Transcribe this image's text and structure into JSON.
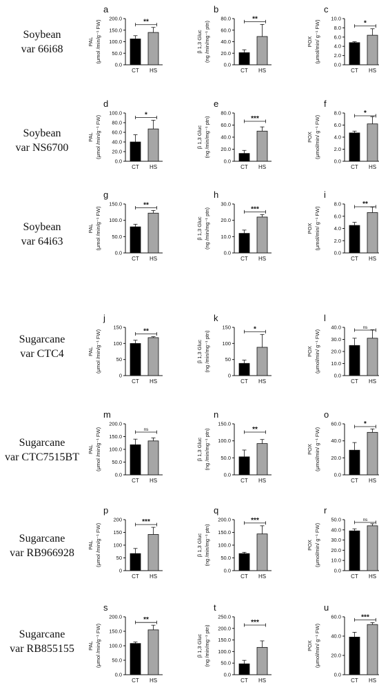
{
  "row_labels": [
    {
      "line1": "Soybean",
      "line2": "var 66i68"
    },
    {
      "line1": "Soybean",
      "line2": "var NS6700"
    },
    {
      "line1": "Soybean",
      "line2": "var 64i63"
    },
    {
      "line1": "Sugarcane",
      "line2": "var CTC4"
    },
    {
      "line1": "Sugarcane",
      "line2": "var CTC7515BT"
    },
    {
      "line1": "Sugarcane",
      "line2": "var RB966928"
    },
    {
      "line1": "Sugarcane",
      "line2": "var RB855155"
    }
  ],
  "colors": {
    "CT": "#000000",
    "HS": "#a6a6a6",
    "axis": "#111111"
  },
  "chart_data": [
    {
      "type": "bar",
      "panel": "a",
      "categories": [
        "CT",
        "HS"
      ],
      "values": [
        112,
        140
      ],
      "errors": [
        14,
        22
      ],
      "ylabel": "PAL",
      "ylabel_unit": "(μmol /min/g⁻¹ FW)",
      "ylim": [
        0,
        200
      ],
      "ticks": [
        "0.0",
        "50.0",
        "100.0",
        "150.0",
        "200.0"
      ],
      "significance": "**"
    },
    {
      "type": "bar",
      "panel": "b",
      "categories": [
        "CT",
        "HS"
      ],
      "values": [
        21,
        49
      ],
      "errors": [
        5,
        21
      ],
      "ylabel": "β 1,3 Gluc",
      "ylabel_unit": "(ng /min/mg⁻¹ ptn)",
      "ylim": [
        0,
        80
      ],
      "ticks": [
        "0.0",
        "20.0",
        "40.0",
        "60.0",
        "80.0"
      ],
      "significance": "**"
    },
    {
      "type": "bar",
      "panel": "c",
      "categories": [
        "CT",
        "HS"
      ],
      "values": [
        4.8,
        6.4
      ],
      "errors": [
        0.2,
        1.4
      ],
      "ylabel": "POX",
      "ylabel_unit": "(μmol/min/ g⁻¹ FW)",
      "ylim": [
        0,
        10
      ],
      "ticks": [
        "0.0",
        "2.0",
        "4.0",
        "6.0",
        "8.0",
        "10.0"
      ],
      "significance": "*"
    },
    {
      "type": "bar",
      "panel": "d",
      "categories": [
        "CT",
        "HS"
      ],
      "values": [
        40,
        67
      ],
      "errors": [
        15,
        18
      ],
      "ylabel": "PAL",
      "ylabel_unit": "(μmol /min/g⁻¹ FW)",
      "ylim": [
        0,
        100
      ],
      "ticks": [
        "0.0",
        "20.0",
        "40.0",
        "60.0",
        "80.0",
        "100.0"
      ],
      "significance": "*"
    },
    {
      "type": "bar",
      "panel": "e",
      "categories": [
        "CT",
        "HS"
      ],
      "values": [
        13,
        50
      ],
      "errors": [
        5,
        7
      ],
      "ylabel": "β 1,3 Gluc",
      "ylabel_unit": "(ng /min/mg⁻¹ ptn)",
      "ylim": [
        0,
        80
      ],
      "ticks": [
        "0.0",
        "20.0",
        "40.0",
        "60.0",
        "80.0"
      ],
      "significance": "***"
    },
    {
      "type": "bar",
      "panel": "f",
      "categories": [
        "CT",
        "HS"
      ],
      "values": [
        4.7,
        6.2
      ],
      "errors": [
        0.3,
        1.2
      ],
      "ylabel": "POX",
      "ylabel_unit": "(μmol/min/ g⁻¹ FW)",
      "ylim": [
        0,
        8
      ],
      "ticks": [
        "0.0",
        "2.0",
        "4.0",
        "6.0",
        "8.0"
      ],
      "significance": "*"
    },
    {
      "type": "bar",
      "panel": "g",
      "categories": [
        "CT",
        "HS"
      ],
      "values": [
        80,
        122
      ],
      "errors": [
        8,
        8
      ],
      "ylabel": "PAL",
      "ylabel_unit": "(μmol /min/g⁻¹ FW)",
      "ylim": [
        0,
        150
      ],
      "ticks": [
        "0.0",
        "50.0",
        "100.0",
        "150.0"
      ],
      "significance": "**"
    },
    {
      "type": "bar",
      "panel": "h",
      "categories": [
        "CT",
        "HS"
      ],
      "values": [
        12,
        22
      ],
      "errors": [
        2,
        1.5
      ],
      "ylabel": "β 1,3 Gluc",
      "ylabel_unit": "(ng /min/mg⁻¹ ptn)",
      "ylim": [
        0,
        30
      ],
      "ticks": [
        "0.0",
        "10.0",
        "20.0",
        "30.0"
      ],
      "significance": "***"
    },
    {
      "type": "bar",
      "panel": "i",
      "categories": [
        "CT",
        "HS"
      ],
      "values": [
        4.5,
        6.6
      ],
      "errors": [
        0.5,
        0.9
      ],
      "ylabel": "POX",
      "ylabel_unit": "(μmol/min/ g⁻¹ FW)",
      "ylim": [
        0,
        8
      ],
      "ticks": [
        "0.0",
        "2.0",
        "4.0",
        "6.0",
        "8.0"
      ],
      "significance": "**"
    },
    {
      "type": "bar",
      "panel": "j",
      "categories": [
        "CT",
        "HS"
      ],
      "values": [
        100,
        118
      ],
      "errors": [
        10,
        3
      ],
      "ylabel": "PAL",
      "ylabel_unit": "(μmol /min/g⁻¹ FW)",
      "ylim": [
        0,
        150
      ],
      "ticks": [
        "0",
        "50",
        "100",
        "150"
      ],
      "significance": "**"
    },
    {
      "type": "bar",
      "panel": "k",
      "categories": [
        "CT",
        "HS"
      ],
      "values": [
        38,
        88
      ],
      "errors": [
        10,
        40
      ],
      "ylabel": "β 1,3 Gluc",
      "ylabel_unit": "(ng /min/mg⁻¹ ptn)",
      "ylim": [
        0,
        150
      ],
      "ticks": [
        "0",
        "50",
        "100",
        "150"
      ],
      "significance": "*"
    },
    {
      "type": "bar",
      "panel": "l",
      "categories": [
        "CT",
        "HS"
      ],
      "values": [
        25,
        31
      ],
      "errors": [
        6,
        7
      ],
      "ylabel": "POX",
      "ylabel_unit": "(μmol/min/ g⁻¹ FW)",
      "ylim": [
        0,
        40
      ],
      "ticks": [
        "0.0",
        "10.0",
        "20.0",
        "30.0",
        "40.0"
      ],
      "significance": "ns"
    },
    {
      "type": "bar",
      "panel": "m",
      "categories": [
        "CT",
        "HS"
      ],
      "values": [
        118,
        133
      ],
      "errors": [
        22,
        12
      ],
      "ylabel": "PAL",
      "ylabel_unit": "(μmol /min/g⁻¹ FW)",
      "ylim": [
        0,
        200
      ],
      "ticks": [
        "0.0",
        "50.0",
        "100.0",
        "150.0",
        "200.0"
      ],
      "significance": "ns"
    },
    {
      "type": "bar",
      "panel": "n",
      "categories": [
        "CT",
        "HS"
      ],
      "values": [
        53,
        92
      ],
      "errors": [
        20,
        12
      ],
      "ylabel": "β 1,3 Gluc",
      "ylabel_unit": "(ng /min/mg⁻¹ ptn)",
      "ylim": [
        0,
        150
      ],
      "ticks": [
        "0.0",
        "50.0",
        "100.0",
        "150.0"
      ],
      "significance": "**"
    },
    {
      "type": "bar",
      "panel": "o",
      "categories": [
        "CT",
        "HS"
      ],
      "values": [
        29,
        50
      ],
      "errors": [
        9,
        4
      ],
      "ylabel": "POX",
      "ylabel_unit": "(μmol/min/ g⁻¹ FW)",
      "ylim": [
        0,
        60
      ],
      "ticks": [
        "0.0",
        "20.0",
        "40.0",
        "60.0"
      ],
      "significance": "*"
    },
    {
      "type": "bar",
      "panel": "p",
      "categories": [
        "CT",
        "HS"
      ],
      "values": [
        67,
        142
      ],
      "errors": [
        20,
        28
      ],
      "ylabel": "PAL",
      "ylabel_unit": "(μmol /min/g⁻¹ FW)",
      "ylim": [
        0,
        200
      ],
      "ticks": [
        "0",
        "50",
        "100",
        "150",
        "200"
      ],
      "significance": "***"
    },
    {
      "type": "bar",
      "panel": "q",
      "categories": [
        "CT",
        "HS"
      ],
      "values": [
        67,
        144
      ],
      "errors": [
        5,
        32
      ],
      "ylabel": "β 1,3 Gluc",
      "ylabel_unit": "(ng /min/mg⁻¹ ptn)",
      "ylim": [
        0,
        200
      ],
      "ticks": [
        "0.0",
        "50.0",
        "100.0",
        "150.0",
        "200.0"
      ],
      "significance": "***"
    },
    {
      "type": "bar",
      "panel": "r",
      "categories": [
        "CT",
        "HS"
      ],
      "values": [
        39,
        44
      ],
      "errors": [
        2,
        2
      ],
      "ylabel": "POX",
      "ylabel_unit": "(μmol/min/ g⁻¹ FW)",
      "ylim": [
        0,
        50
      ],
      "ticks": [
        "0.0",
        "10.0",
        "20.0",
        "30.0",
        "40.0",
        "50.0"
      ],
      "significance": "ns"
    },
    {
      "type": "bar",
      "panel": "s",
      "categories": [
        "CT",
        "HS"
      ],
      "values": [
        108,
        155
      ],
      "errors": [
        5,
        16
      ],
      "ylabel": "PAL",
      "ylabel_unit": "(μmol /min/g⁻¹ FW)",
      "ylim": [
        0,
        200
      ],
      "ticks": [
        "0.0",
        "50.0",
        "100.0",
        "150.0",
        "200.0"
      ],
      "significance": "**"
    },
    {
      "type": "bar",
      "panel": "t",
      "categories": [
        "CT",
        "HS"
      ],
      "values": [
        47,
        118
      ],
      "errors": [
        15,
        28
      ],
      "ylabel": "β 1,3 Gluc",
      "ylabel_unit": "(ng /min/mg⁻¹ ptn)",
      "ylim": [
        0,
        250
      ],
      "ticks": [
        "0.0",
        "50.0",
        "100.0",
        "150.0",
        "200.0",
        "250.0"
      ],
      "significance": "***"
    },
    {
      "type": "bar",
      "panel": "u",
      "categories": [
        "CT",
        "HS"
      ],
      "values": [
        39,
        52
      ],
      "errors": [
        5,
        2
      ],
      "ylabel": "POX",
      "ylabel_unit": "(μmol/min/ g⁻¹ FW)",
      "ylim": [
        0,
        60
      ],
      "ticks": [
        "0.0",
        "20.0",
        "40.0",
        "60.0"
      ],
      "significance": "***"
    }
  ]
}
